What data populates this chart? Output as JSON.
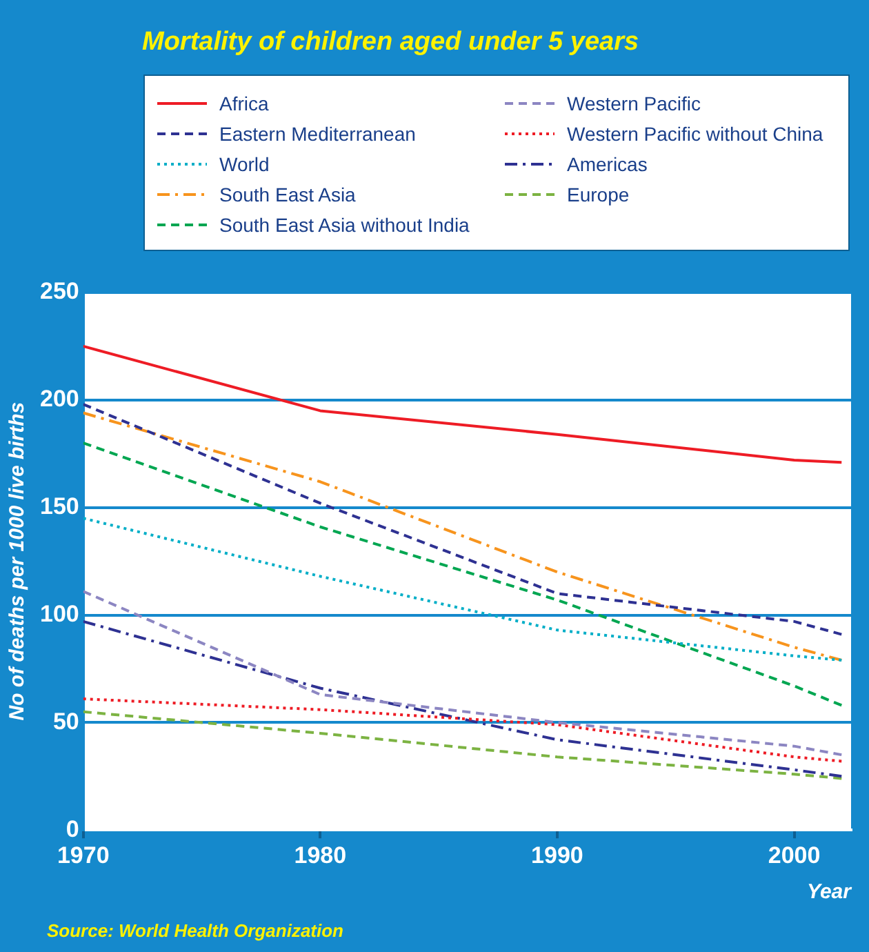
{
  "chart_data": {
    "type": "line",
    "title": "Mortality of children aged under 5 years",
    "xlabel": "Year",
    "ylabel": "No of deaths per 1000 live births",
    "x": [
      1970,
      1980,
      1990,
      2000,
      2002
    ],
    "xlim": [
      1970,
      2002.4
    ],
    "xticks": [
      1970,
      1980,
      1990,
      2000
    ],
    "ylim": [
      0,
      250
    ],
    "yticks": [
      0,
      50,
      100,
      150,
      200,
      250
    ],
    "grid": "y",
    "legend": "top",
    "marker": "none",
    "series": [
      {
        "name": "Africa",
        "color": "#ee1c25",
        "line_style": "solid",
        "values": [
          225,
          195,
          184,
          172,
          171
        ]
      },
      {
        "name": "Eastern Mediterranean",
        "color": "#2e3192",
        "line_style": "dashed",
        "values": [
          198,
          152,
          110,
          97,
          91
        ]
      },
      {
        "name": "World",
        "color": "#00aec7",
        "line_style": "dotted",
        "values": [
          145,
          118,
          93,
          81,
          79
        ]
      },
      {
        "name": "South East Asia",
        "color": "#f7941d",
        "line_style": "dashdot",
        "values": [
          194,
          162,
          120,
          85,
          79
        ]
      },
      {
        "name": "South East Asia without India",
        "color": "#00a651",
        "line_style": "dashed",
        "values": [
          180,
          141,
          107,
          67,
          58
        ]
      },
      {
        "name": "Western Pacific",
        "color": "#8c86c2",
        "line_style": "dashed",
        "values": [
          111,
          63,
          50,
          39,
          35
        ]
      },
      {
        "name": "Western Pacific without China",
        "color": "#ee1c25",
        "line_style": "dotted",
        "values": [
          61,
          56,
          49,
          34,
          32
        ]
      },
      {
        "name": "Americas",
        "color": "#2e3192",
        "line_style": "dashdot",
        "values": [
          97,
          66,
          42,
          28,
          25
        ]
      },
      {
        "name": "Europe",
        "color": "#7cb342",
        "line_style": "dashed",
        "values": [
          55,
          45,
          34,
          26,
          24
        ]
      }
    ],
    "annotations": [
      "Source: World Health Organization"
    ]
  }
}
